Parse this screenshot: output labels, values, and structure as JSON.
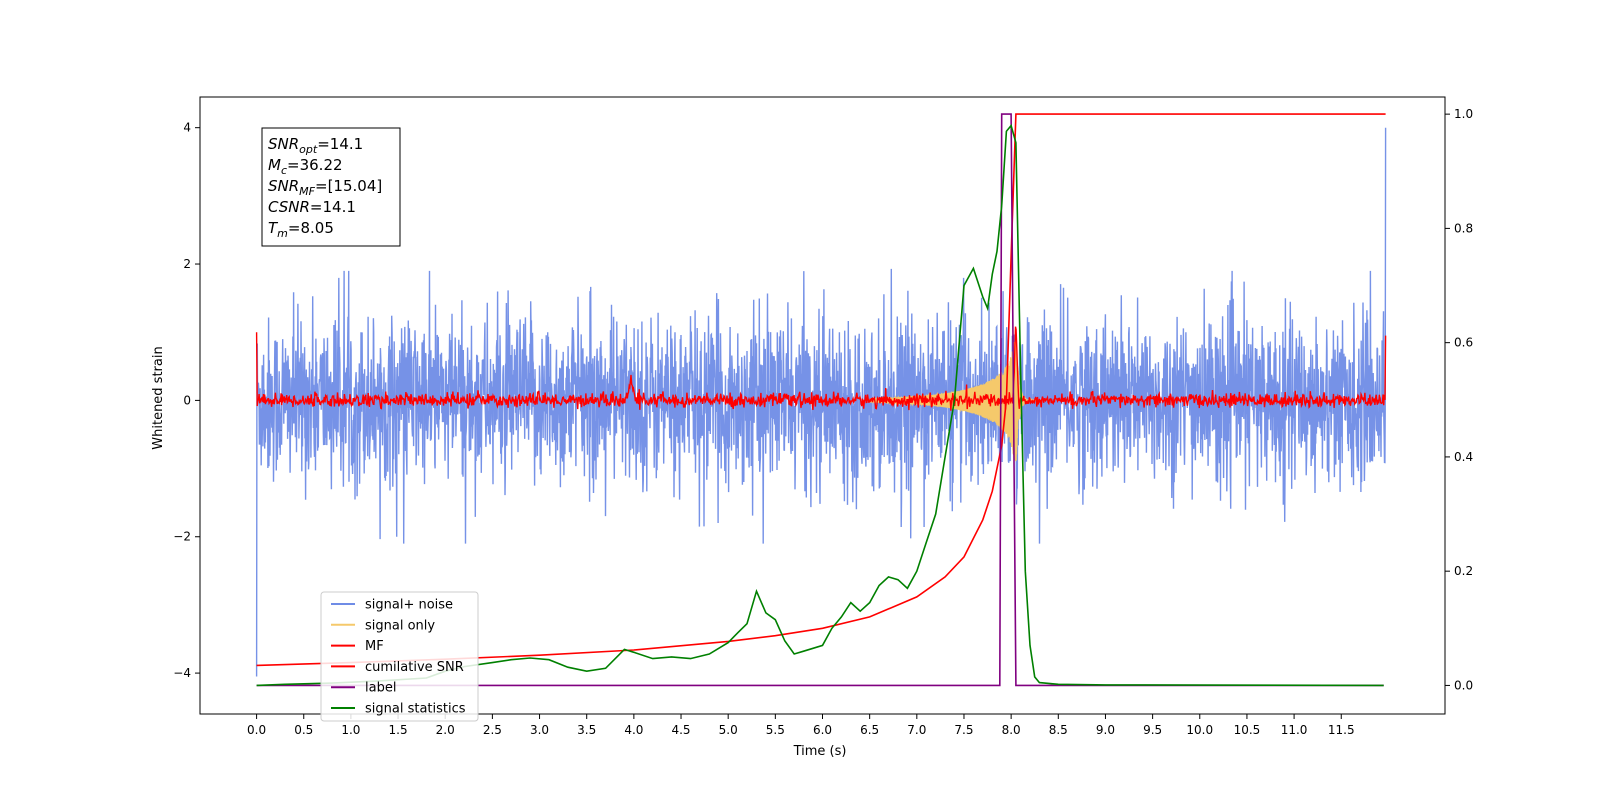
{
  "chart_data": {
    "type": "line",
    "title": "",
    "xlabel": "Time (s)",
    "ylabel_left": "Whitened strain",
    "ylabel_right": "",
    "xlim": [
      -0.6,
      12.6
    ],
    "ylim_left": [
      -4.6,
      4.45
    ],
    "ylim_right": [
      -0.05,
      1.03
    ],
    "x_ticks": [
      0.0,
      0.5,
      1.0,
      1.5,
      2.0,
      2.5,
      3.0,
      3.5,
      4.0,
      4.5,
      5.0,
      5.5,
      6.0,
      6.5,
      7.0,
      7.5,
      8.0,
      8.5,
      9.0,
      9.5,
      10.0,
      10.5,
      11.0,
      11.5
    ],
    "x_tick_labels": [
      "0.0",
      "0.5",
      "1.0",
      "1.5",
      "2.0",
      "2.5",
      "3.0",
      "3.5",
      "4.0",
      "4.5",
      "5.0",
      "5.5",
      "6.0",
      "6.5",
      "7.0",
      "7.5",
      "8.0",
      "8.5",
      "9.0",
      "9.5",
      "10.0",
      "10.5",
      "11.0",
      "11.5"
    ],
    "y_ticks_left": [
      -4,
      -2,
      0,
      2,
      4
    ],
    "y_tick_labels_left": [
      "−4",
      "−2",
      "0",
      "2",
      "4"
    ],
    "y_ticks_right": [
      0.0,
      0.2,
      0.4,
      0.6,
      0.8,
      1.0
    ],
    "y_tick_labels_right": [
      "0.0",
      "0.2",
      "0.4",
      "0.6",
      "0.8",
      "1.0"
    ],
    "legend_placement": "lower-left",
    "annotation": [
      {
        "main": "SNR",
        "sub": "opt",
        "value": "=14.1"
      },
      {
        "main": "M",
        "sub": "c",
        "value": "=36.22"
      },
      {
        "main": "SNR",
        "sub": "MF",
        "value": "=[15.04]"
      },
      {
        "main": "CSNR",
        "sub": "",
        "value": "=14.1"
      },
      {
        "main": "T",
        "sub": "m",
        "value": "=8.05"
      }
    ],
    "series": [
      {
        "name": "signal+ noise",
        "axis": "left",
        "color": "#6f8ce6",
        "style": "noise",
        "x_range": [
          0.0,
          11.97
        ],
        "amplitude_approx": 1.9
      },
      {
        "name": "signal only",
        "axis": "left",
        "color": "#f5c96b",
        "style": "chirp",
        "merger_time": 8.05,
        "peak_amplitude": 1.0
      },
      {
        "name": "MF",
        "axis": "left",
        "color": "#ff0000",
        "style": "noise",
        "x_range": [
          0.0,
          11.97
        ],
        "amplitude_approx": 0.15
      },
      {
        "name": "cumilative SNR",
        "axis": "right",
        "color": "#ff0000",
        "x": [
          0.0,
          1.0,
          2.0,
          3.0,
          4.0,
          5.0,
          5.5,
          6.0,
          6.5,
          7.0,
          7.3,
          7.5,
          7.7,
          7.8,
          7.9,
          7.95,
          8.0,
          8.05,
          11.97
        ],
        "y": [
          0.035,
          0.04,
          0.046,
          0.053,
          0.062,
          0.077,
          0.087,
          0.1,
          0.12,
          0.155,
          0.19,
          0.225,
          0.29,
          0.34,
          0.42,
          0.5,
          0.75,
          1.0,
          1.0
        ]
      },
      {
        "name": "label",
        "axis": "right",
        "color": "#800080",
        "x": [
          0.0,
          7.88,
          7.9,
          8.0,
          8.05,
          11.95
        ],
        "y": [
          0.0,
          0.0,
          1.0,
          1.0,
          0.0,
          0.0
        ]
      },
      {
        "name": "signal statistics",
        "axis": "right",
        "color": "#008000",
        "x": [
          0.0,
          0.3,
          0.8,
          1.3,
          1.8,
          2.0,
          2.2,
          2.5,
          2.7,
          2.9,
          3.1,
          3.3,
          3.5,
          3.7,
          3.9,
          4.0,
          4.2,
          4.4,
          4.6,
          4.8,
          5.0,
          5.1,
          5.2,
          5.3,
          5.4,
          5.5,
          5.6,
          5.7,
          5.8,
          6.0,
          6.1,
          6.2,
          6.3,
          6.4,
          6.5,
          6.6,
          6.7,
          6.8,
          6.9,
          7.0,
          7.1,
          7.2,
          7.3,
          7.4,
          7.5,
          7.6,
          7.7,
          7.75,
          7.8,
          7.85,
          7.9,
          7.95,
          8.0,
          8.05,
          8.1,
          8.15,
          8.2,
          8.25,
          8.3,
          8.5,
          9.0,
          11.95
        ],
        "y": [
          0.0,
          0.002,
          0.004,
          0.008,
          0.013,
          0.025,
          0.033,
          0.04,
          0.045,
          0.048,
          0.045,
          0.032,
          0.025,
          0.03,
          0.063,
          0.058,
          0.047,
          0.05,
          0.047,
          0.055,
          0.075,
          0.092,
          0.108,
          0.165,
          0.127,
          0.115,
          0.078,
          0.055,
          0.06,
          0.07,
          0.1,
          0.12,
          0.145,
          0.13,
          0.145,
          0.175,
          0.19,
          0.185,
          0.17,
          0.2,
          0.25,
          0.3,
          0.4,
          0.5,
          0.7,
          0.73,
          0.68,
          0.66,
          0.72,
          0.76,
          0.84,
          0.97,
          0.98,
          0.95,
          0.55,
          0.2,
          0.07,
          0.015,
          0.005,
          0.002,
          0.001,
          0.0
        ]
      }
    ]
  }
}
